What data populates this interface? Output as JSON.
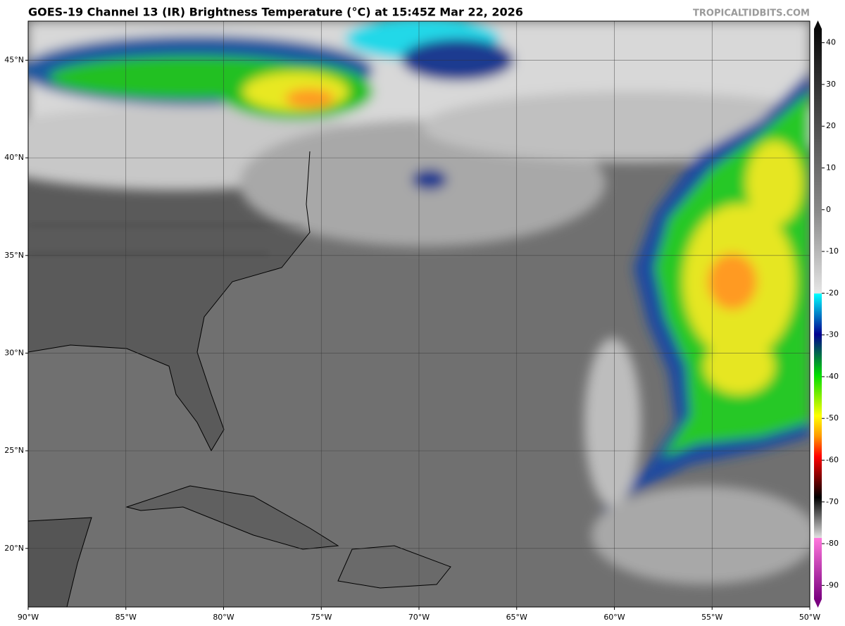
{
  "title": "GOES-19 Channel 13 (IR) Brightness Temperature (°C) at 15:45Z Mar 22, 2026",
  "credit": "TROPICALTIDBITS.COM",
  "map": {
    "lonlim": [
      -90,
      -50
    ],
    "latlim": [
      17,
      47
    ],
    "lon_ticks": [
      {
        "value": -90,
        "label": "90°W"
      },
      {
        "value": -85,
        "label": "85°W"
      },
      {
        "value": -80,
        "label": "80°W"
      },
      {
        "value": -75,
        "label": "75°W"
      },
      {
        "value": -70,
        "label": "70°W"
      },
      {
        "value": -65,
        "label": "65°W"
      },
      {
        "value": -60,
        "label": "60°W"
      },
      {
        "value": -55,
        "label": "55°W"
      },
      {
        "value": -50,
        "label": "50°W"
      }
    ],
    "lat_ticks": [
      {
        "value": 20,
        "label": "20°N"
      },
      {
        "value": 25,
        "label": "25°N"
      },
      {
        "value": 30,
        "label": "30°N"
      },
      {
        "value": 35,
        "label": "35°N"
      },
      {
        "value": 40,
        "label": "40°N"
      },
      {
        "value": 45,
        "label": "45°N"
      }
    ]
  },
  "colorbar": {
    "lim": [
      -95,
      45
    ],
    "ticks": [
      40,
      30,
      20,
      10,
      0,
      -10,
      -20,
      -30,
      -40,
      -50,
      -60,
      -70,
      -80,
      -90
    ],
    "stops": [
      {
        "value": 45,
        "color": "#0a0a0a"
      },
      {
        "value": 0,
        "color": "#8a8a8a"
      },
      {
        "value": -19.9,
        "color": "#e6e6e6"
      },
      {
        "value": -20,
        "color": "#00ffff"
      },
      {
        "value": -30,
        "color": "#000090"
      },
      {
        "value": -40,
        "color": "#00dd00"
      },
      {
        "value": -50,
        "color": "#ffff00"
      },
      {
        "value": -55,
        "color": "#ff9900"
      },
      {
        "value": -60,
        "color": "#ff0000"
      },
      {
        "value": -65,
        "color": "#800000"
      },
      {
        "value": -70,
        "color": "#000000"
      },
      {
        "value": -79.9,
        "color": "#e0e0e0"
      },
      {
        "value": -80,
        "color": "#ff77dd"
      },
      {
        "value": -95,
        "color": "#7a0080"
      }
    ]
  }
}
